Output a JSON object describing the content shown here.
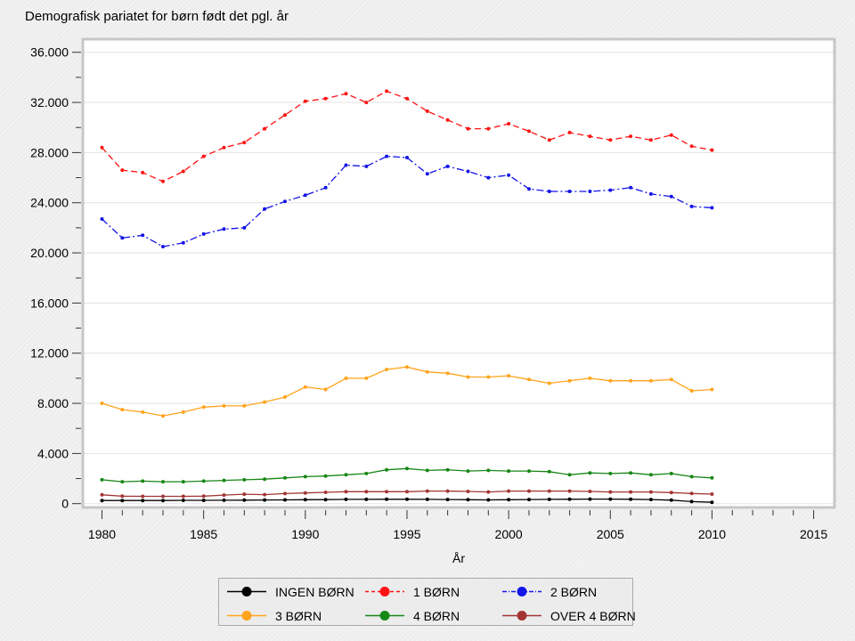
{
  "title": "Demografisk pariatet for børn født det pgl. år",
  "chart_data": {
    "type": "line",
    "title": "Demografisk pariatet for børn født det pgl. år",
    "xlabel": "År",
    "ylabel": "",
    "xlim": [
      1979,
      2016
    ],
    "ylim": [
      0,
      36800
    ],
    "grid": "horizontal-only",
    "legend_position": "bottom-center",
    "x": [
      1980,
      1981,
      1982,
      1983,
      1984,
      1985,
      1986,
      1987,
      1988,
      1989,
      1990,
      1991,
      1992,
      1993,
      1994,
      1995,
      1996,
      1997,
      1998,
      1999,
      2000,
      2001,
      2002,
      2003,
      2004,
      2005,
      2006,
      2007,
      2008,
      2009,
      2010
    ],
    "xticks": {
      "values": [
        1980,
        1985,
        1990,
        1995,
        2000,
        2005,
        2010,
        2015
      ],
      "labels": [
        "1980",
        "1985",
        "1990",
        "1995",
        "2000",
        "2005",
        "2010",
        "2015"
      ],
      "minor_every_years": 1
    },
    "yticks": {
      "values": [
        0,
        4000,
        8000,
        12000,
        16000,
        20000,
        24000,
        28000,
        32000,
        36000
      ],
      "labels": [
        "0",
        "4.000",
        "8.000",
        "12.000",
        "16.000",
        "20.000",
        "24.000",
        "28.000",
        "32.000",
        "36.000"
      ],
      "minor_values": [
        2000,
        6000,
        10000,
        14000,
        18000,
        22000,
        26000,
        30000,
        34000
      ]
    },
    "series": [
      {
        "name": "INGEN BØRN",
        "color": "#000000",
        "dash": "solid",
        "values": [
          250,
          250,
          250,
          250,
          260,
          260,
          270,
          280,
          290,
          300,
          310,
          320,
          340,
          340,
          350,
          350,
          340,
          330,
          310,
          300,
          310,
          330,
          340,
          350,
          360,
          360,
          350,
          330,
          280,
          160,
          110
        ]
      },
      {
        "name": "1 BØRN",
        "color": "#fe1212",
        "dash": "dash",
        "values": [
          28400,
          26600,
          26400,
          25700,
          26500,
          27700,
          28400,
          28800,
          29900,
          31000,
          32100,
          32300,
          32700,
          32000,
          32900,
          32300,
          31300,
          30600,
          29900,
          29900,
          30300,
          29700,
          29000,
          29600,
          29300,
          29000,
          29300,
          29000,
          29400,
          28500,
          28200
        ]
      },
      {
        "name": "2 BØRN",
        "color": "#1414e8",
        "dash": "dashdot",
        "values": [
          22700,
          21200,
          21400,
          20500,
          20800,
          21500,
          21900,
          22000,
          23500,
          24100,
          24600,
          25200,
          27000,
          26900,
          27700,
          27600,
          26300,
          26900,
          26500,
          26000,
          26200,
          25100,
          24900,
          24900,
          24900,
          25000,
          25200,
          24700,
          24500,
          23700,
          23600
        ]
      },
      {
        "name": "3 BØRN",
        "color": "#ffa41d",
        "dash": "solid",
        "values": [
          8000,
          7500,
          7300,
          7000,
          7300,
          7700,
          7800,
          7800,
          8100,
          8500,
          9300,
          9100,
          10000,
          10000,
          10700,
          10900,
          10500,
          10400,
          10100,
          10100,
          10200,
          9900,
          9600,
          9800,
          10000,
          9800,
          9800,
          9800,
          9900,
          9000,
          9100
        ]
      },
      {
        "name": "4 BØRN",
        "color": "#178717",
        "dash": "solid",
        "values": [
          1900,
          1750,
          1800,
          1750,
          1750,
          1800,
          1850,
          1900,
          1950,
          2050,
          2150,
          2200,
          2300,
          2400,
          2700,
          2800,
          2650,
          2700,
          2600,
          2650,
          2600,
          2600,
          2550,
          2300,
          2450,
          2400,
          2450,
          2300,
          2400,
          2150,
          2050
        ]
      },
      {
        "name": "OVER 4 BØRN",
        "color": "#a33535",
        "dash": "solid",
        "values": [
          700,
          600,
          580,
          580,
          580,
          600,
          680,
          750,
          720,
          800,
          850,
          900,
          950,
          950,
          950,
          950,
          1000,
          1000,
          970,
          930,
          1000,
          1000,
          1000,
          1000,
          970,
          930,
          930,
          930,
          880,
          810,
          760
        ]
      }
    ]
  },
  "colors": {
    "page_bg": "#efefef",
    "plot_bg": "#ffffff",
    "plot_frame": "#c7c7c7",
    "gridline": "#e3e3e3",
    "tick": "#333333",
    "text": "#000000",
    "legend_bg": "#ececec",
    "legend_border": "#a9a9a9"
  }
}
